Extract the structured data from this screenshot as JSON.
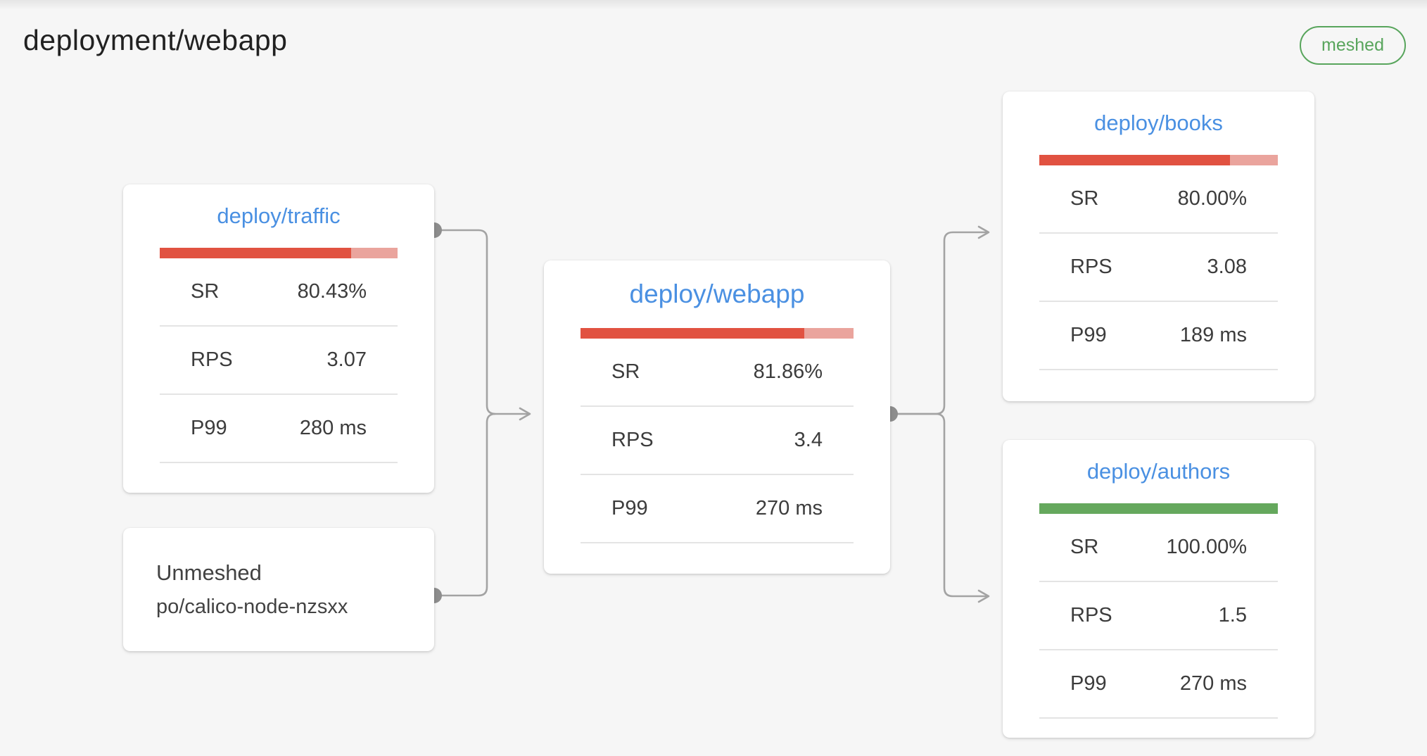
{
  "page": {
    "title": "deployment/webapp",
    "badge": "meshed"
  },
  "colors": {
    "red": "#e15241",
    "redLight": "#eaa49d",
    "green": "#65a85d",
    "blue": "#4a90e2",
    "edge": "#a3a3a3",
    "edgeDot": "#8d8d8d",
    "badge": "#58a55c"
  },
  "nodes": {
    "traffic": {
      "title": "deploy/traffic",
      "bar": {
        "color": "red",
        "fill_pct": 80.43
      },
      "rows": [
        {
          "label": "SR",
          "value": "80.43%"
        },
        {
          "label": "RPS",
          "value": "3.07"
        },
        {
          "label": "P99",
          "value": "280 ms"
        }
      ]
    },
    "unmeshed": {
      "title": "Unmeshed",
      "subtitle": "po/calico-node-nzsxx"
    },
    "webapp": {
      "title": "deploy/webapp",
      "bar": {
        "color": "red",
        "fill_pct": 81.86
      },
      "rows": [
        {
          "label": "SR",
          "value": "81.86%"
        },
        {
          "label": "RPS",
          "value": "3.4"
        },
        {
          "label": "P99",
          "value": "270 ms"
        }
      ]
    },
    "books": {
      "title": "deploy/books",
      "bar": {
        "color": "red",
        "fill_pct": 80.0
      },
      "rows": [
        {
          "label": "SR",
          "value": "80.00%"
        },
        {
          "label": "RPS",
          "value": "3.08"
        },
        {
          "label": "P99",
          "value": "189 ms"
        }
      ]
    },
    "authors": {
      "title": "deploy/authors",
      "bar": {
        "color": "green",
        "fill_pct": 100
      },
      "rows": [
        {
          "label": "SR",
          "value": "100.00%"
        },
        {
          "label": "RPS",
          "value": "1.5"
        },
        {
          "label": "P99",
          "value": "270 ms"
        }
      ]
    }
  }
}
